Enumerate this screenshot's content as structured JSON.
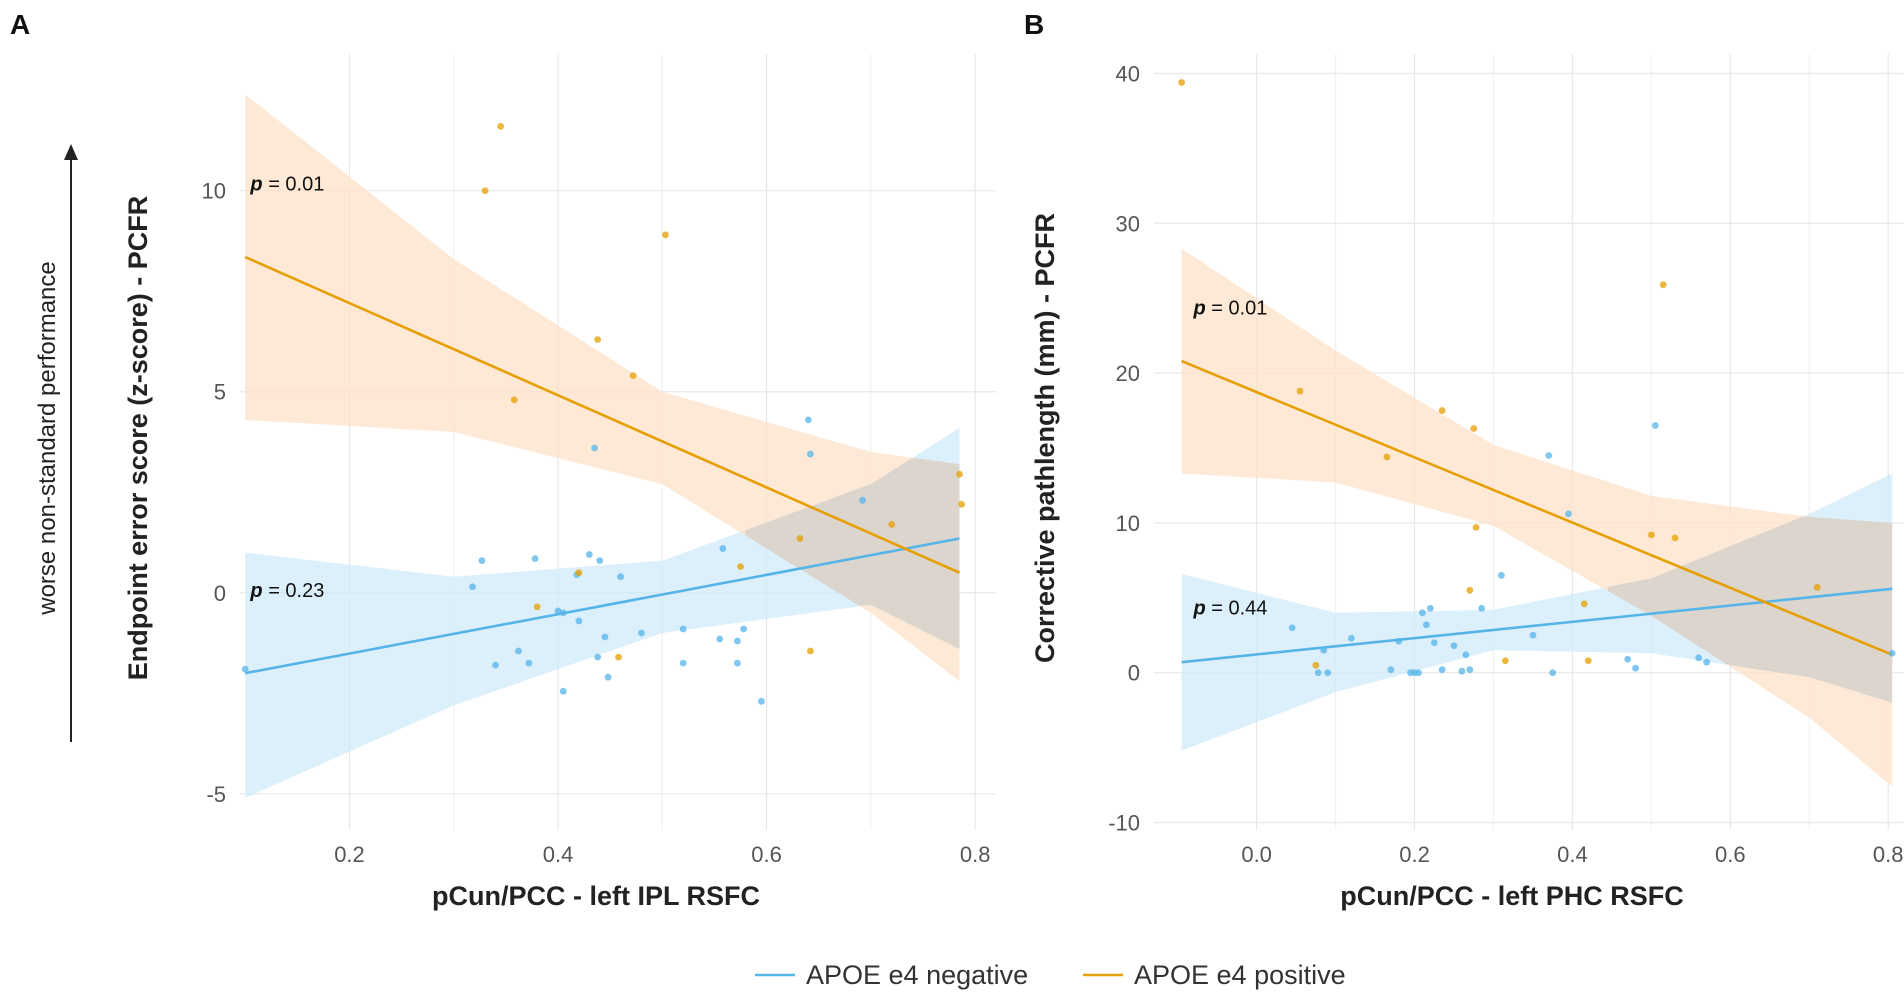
{
  "side_label": "worse non-standard performance",
  "legend": {
    "items": [
      {
        "label": "APOE e4 negative",
        "color": "#56b4e9"
      },
      {
        "label": "APOE e4 positive",
        "color": "#e69f00"
      }
    ]
  },
  "colors": {
    "negative": "#56b4e9",
    "positive": "#e69f00",
    "negative_band": "#cfeafb",
    "positive_band": "#fde0c6",
    "overlap_band": "#d9d4cc"
  },
  "chart_data": [
    {
      "type": "scatter",
      "panel": "A",
      "xlabel": "pCun/PCC - left IPL RSFC",
      "ylabel": "Endpoint error score (z-score) - PCFR",
      "xlim": [
        0.095,
        0.82
      ],
      "ylim": [
        -5.9,
        13.4
      ],
      "xticks": [
        0.2,
        0.4,
        0.6,
        0.8
      ],
      "xtick_labels": [
        "0.2",
        "0.4",
        "0.6",
        "0.8"
      ],
      "yticks": [
        -5,
        0,
        5,
        10
      ],
      "ytick_labels": [
        "-5",
        "0",
        "5",
        "10"
      ],
      "annotations": [
        {
          "label": "p",
          "text": " = 0.01",
          "x": 0.105,
          "y": 10,
          "group": "positive"
        },
        {
          "label": "p",
          "text": " = 0.23",
          "x": 0.105,
          "y": -0.1,
          "group": "negative"
        }
      ],
      "series": [
        {
          "name": "APOE e4 negative",
          "group": "negative",
          "fit": {
            "x": [
              0.1,
              0.785
            ],
            "y": [
              -2.0,
              1.35
            ]
          },
          "band": {
            "x": [
              0.1,
              0.3,
              0.5,
              0.7,
              0.785
            ],
            "upper": [
              1.0,
              0.4,
              0.8,
              2.7,
              4.1
            ],
            "lower": [
              -5.1,
              -2.8,
              -1.0,
              -0.3,
              -1.4
            ]
          },
          "points": [
            [
              0.1,
              -1.9
            ],
            [
              0.318,
              0.15
            ],
            [
              0.327,
              0.8
            ],
            [
              0.34,
              -1.8
            ],
            [
              0.362,
              -1.45
            ],
            [
              0.372,
              -1.75
            ],
            [
              0.378,
              0.85
            ],
            [
              0.4,
              -0.45
            ],
            [
              0.405,
              -2.45
            ],
            [
              0.405,
              -0.5
            ],
            [
              0.418,
              0.45
            ],
            [
              0.42,
              -0.7
            ],
            [
              0.43,
              0.95
            ],
            [
              0.435,
              3.6
            ],
            [
              0.438,
              -1.6
            ],
            [
              0.44,
              0.8
            ],
            [
              0.445,
              -1.1
            ],
            [
              0.448,
              -2.1
            ],
            [
              0.46,
              0.4
            ],
            [
              0.48,
              -1.0
            ],
            [
              0.52,
              -0.9
            ],
            [
              0.52,
              -1.75
            ],
            [
              0.555,
              -1.15
            ],
            [
              0.558,
              1.1
            ],
            [
              0.572,
              -1.2
            ],
            [
              0.572,
              -1.75
            ],
            [
              0.578,
              -0.9
            ],
            [
              0.595,
              -2.7
            ],
            [
              0.64,
              4.3
            ],
            [
              0.642,
              3.45
            ],
            [
              0.692,
              2.3
            ]
          ]
        },
        {
          "name": "APOE e4 positive",
          "group": "positive",
          "fit": {
            "x": [
              0.1,
              0.785
            ],
            "y": [
              8.35,
              0.5
            ]
          },
          "band": {
            "x": [
              0.1,
              0.3,
              0.5,
              0.7,
              0.785
            ],
            "upper": [
              12.4,
              8.3,
              5.0,
              3.5,
              3.2
            ],
            "lower": [
              4.3,
              4.0,
              2.7,
              -0.5,
              -2.2
            ]
          },
          "points": [
            [
              0.33,
              10.0
            ],
            [
              0.345,
              11.6
            ],
            [
              0.358,
              4.8
            ],
            [
              0.38,
              -0.35
            ],
            [
              0.42,
              0.5
            ],
            [
              0.438,
              6.3
            ],
            [
              0.458,
              -1.6
            ],
            [
              0.472,
              5.4
            ],
            [
              0.503,
              8.9
            ],
            [
              0.575,
              0.65
            ],
            [
              0.632,
              1.35
            ],
            [
              0.642,
              -1.45
            ],
            [
              0.72,
              1.7
            ],
            [
              0.785,
              2.95
            ],
            [
              0.787,
              2.2
            ]
          ]
        }
      ]
    },
    {
      "type": "scatter",
      "panel": "B",
      "xlabel": "pCun/PCC - left PHC RSFC",
      "ylabel": "Corrective pathlength (mm) - PCFR",
      "xlim": [
        -0.13,
        0.82
      ],
      "ylim": [
        -10.5,
        41.3
      ],
      "xticks": [
        0.0,
        0.2,
        0.4,
        0.6,
        0.8
      ],
      "xtick_labels": [
        "0.0",
        "0.2",
        "0.4",
        "0.6",
        "0.8"
      ],
      "yticks": [
        -10,
        0,
        10,
        20,
        30,
        40
      ],
      "ytick_labels": [
        "-10",
        "0",
        "10",
        "20",
        "30",
        "40"
      ],
      "annotations": [
        {
          "label": "p",
          "text": " = 0.01",
          "x": -0.08,
          "y": 23.9,
          "group": "positive"
        },
        {
          "label": "p",
          "text": " = 0.44",
          "x": -0.08,
          "y": 3.9,
          "group": "negative"
        }
      ],
      "series": [
        {
          "name": "APOE e4 negative",
          "group": "negative",
          "fit": {
            "x": [
              -0.095,
              0.805
            ],
            "y": [
              0.7,
              5.6
            ]
          },
          "band": {
            "x": [
              -0.095,
              0.1,
              0.3,
              0.5,
              0.7,
              0.805
            ],
            "upper": [
              6.6,
              4.0,
              4.2,
              6.3,
              10.6,
              13.3
            ],
            "lower": [
              -5.2,
              -1.3,
              1.5,
              1.3,
              -0.3,
              -2.0
            ]
          },
          "points": [
            [
              0.045,
              3.0
            ],
            [
              0.078,
              0.0
            ],
            [
              0.085,
              1.5
            ],
            [
              0.09,
              0.0
            ],
            [
              0.12,
              2.3
            ],
            [
              0.17,
              0.2
            ],
            [
              0.18,
              2.1
            ],
            [
              0.195,
              0.0
            ],
            [
              0.2,
              0.0
            ],
            [
              0.205,
              0.0
            ],
            [
              0.21,
              4.0
            ],
            [
              0.215,
              3.2
            ],
            [
              0.22,
              4.3
            ],
            [
              0.225,
              2.0
            ],
            [
              0.235,
              0.2
            ],
            [
              0.25,
              1.8
            ],
            [
              0.26,
              0.1
            ],
            [
              0.265,
              1.2
            ],
            [
              0.27,
              0.2
            ],
            [
              0.285,
              4.3
            ],
            [
              0.31,
              6.5
            ],
            [
              0.35,
              2.5
            ],
            [
              0.37,
              14.5
            ],
            [
              0.375,
              0.0
            ],
            [
              0.395,
              10.6
            ],
            [
              0.47,
              0.9
            ],
            [
              0.48,
              0.3
            ],
            [
              0.505,
              16.5
            ],
            [
              0.56,
              1.0
            ],
            [
              0.57,
              0.7
            ],
            [
              0.805,
              1.3
            ]
          ]
        },
        {
          "name": "APOE e4 positive",
          "group": "positive",
          "fit": {
            "x": [
              -0.095,
              0.805
            ],
            "y": [
              20.8,
              1.2
            ]
          },
          "band": {
            "x": [
              -0.095,
              0.1,
              0.3,
              0.5,
              0.7,
              0.805
            ],
            "upper": [
              28.3,
              21.5,
              15.2,
              11.8,
              10.4,
              10.0
            ],
            "lower": [
              13.3,
              12.7,
              9.8,
              3.8,
              -3.0,
              -7.6
            ]
          },
          "points": [
            [
              -0.095,
              39.4
            ],
            [
              0.055,
              18.8
            ],
            [
              0.075,
              0.5
            ],
            [
              0.165,
              14.4
            ],
            [
              0.235,
              17.5
            ],
            [
              0.27,
              5.5
            ],
            [
              0.275,
              16.3
            ],
            [
              0.278,
              9.7
            ],
            [
              0.315,
              0.8
            ],
            [
              0.415,
              4.6
            ],
            [
              0.42,
              0.8
            ],
            [
              0.5,
              9.2
            ],
            [
              0.515,
              25.9
            ],
            [
              0.53,
              9.0
            ],
            [
              0.71,
              5.7
            ]
          ]
        }
      ]
    }
  ]
}
